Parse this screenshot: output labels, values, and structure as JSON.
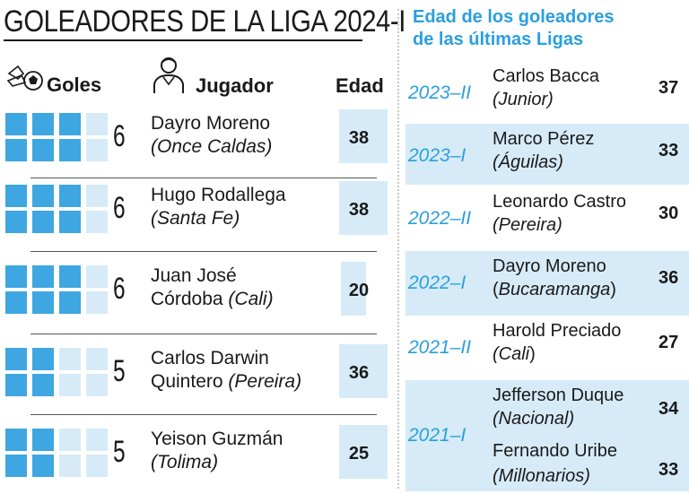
{
  "title": "GOLEADORES DE LA LIGA 2024-I",
  "headers": {
    "goals": "Goles",
    "player": "Jugador",
    "age": "Edad"
  },
  "players": [
    {
      "goals": "6",
      "name": "Dayro Moreno",
      "club": "(Once Caldas)",
      "age": "38",
      "filled": 6
    },
    {
      "goals": "6",
      "name": "Hugo Rodallega",
      "club": "(Santa Fe)",
      "age": "38",
      "filled": 6
    },
    {
      "goals": "6",
      "name_line1": "Juan José",
      "name_line2": "Córdoba",
      "club": "(Cali)",
      "age": "20",
      "filled": 6
    },
    {
      "goals": "5",
      "name_line1": "Carlos Darwin",
      "name_line2": "Quintero",
      "club": "(Pereira)",
      "age": "36",
      "filled": 5
    },
    {
      "goals": "5",
      "name": "Yeison Guzmán",
      "club": "(Tolima)",
      "age": "25",
      "filled": 5
    }
  ],
  "history": {
    "title_line1": "Edad de los goleadores",
    "title_line2": "de las últimas Ligas",
    "entries": [
      {
        "year": "2023–II",
        "name": "Carlos Bacca",
        "club": "(Junior)",
        "age": "37"
      },
      {
        "year": "2023–I",
        "name": "Marco Pérez",
        "club": "(Águilas)",
        "age": "33"
      },
      {
        "year": "2022–II",
        "name": "Leonardo Castro",
        "club": "(Pereira)",
        "age": "30"
      },
      {
        "year": "2022–I",
        "name": "Dayro Moreno",
        "club_open": "(",
        "club": "Bucaramanga",
        "club_close": ")",
        "age": "36"
      },
      {
        "year": "2021–II",
        "name": "Harold Preciado",
        "club": "(Cali",
        "club_close": ")",
        "age": "27"
      },
      {
        "year": "2021–I",
        "name": "Jefferson Duque",
        "club": "(Nacional)",
        "age": "34",
        "name2": "Fernando Uribe",
        "club2": "(Millonarios)",
        "age2": "33"
      }
    ]
  },
  "colors": {
    "accent": "#3ea6e1",
    "accent_light": "#d6ebf7",
    "title_blue": "#2a9fde",
    "text": "#1a1a1a"
  },
  "icons": {
    "goals": "soccer-ball-boot-icon",
    "player": "player-person-icon"
  }
}
